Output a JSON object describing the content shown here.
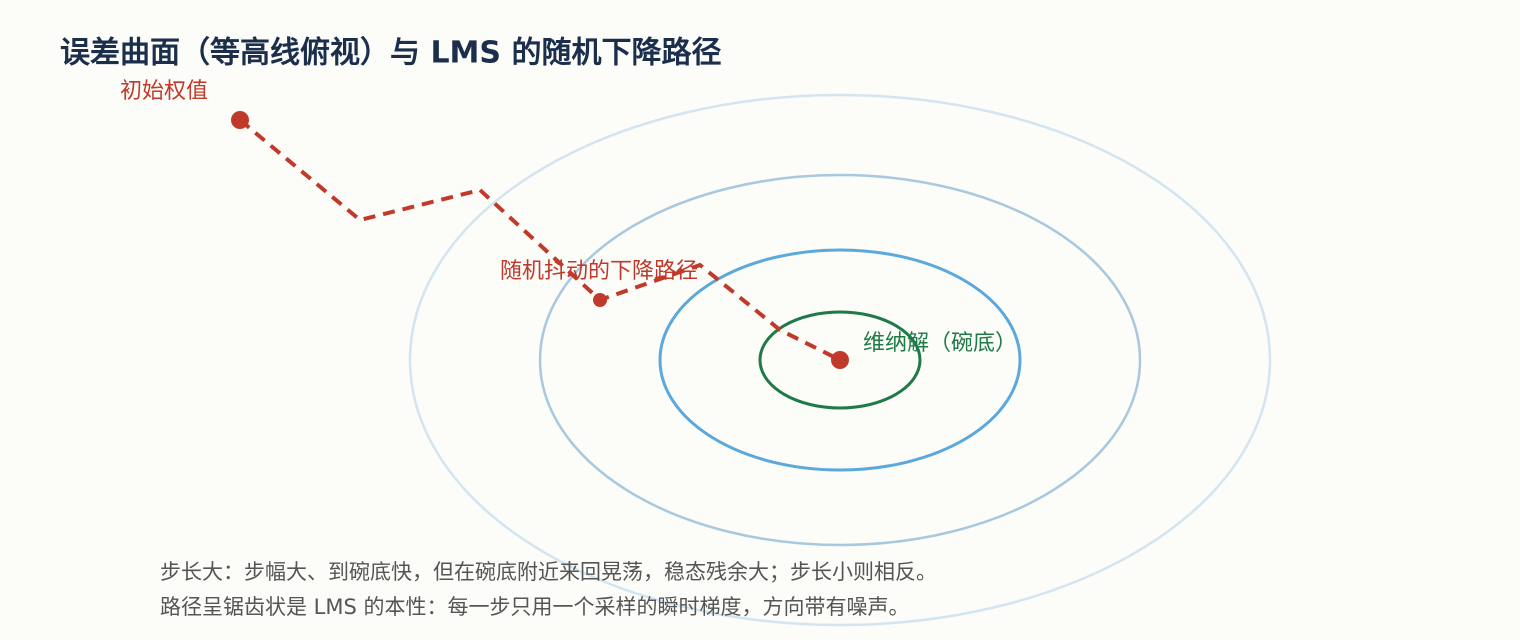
{
  "header": {
    "title": "误差曲面（等高线俯视）与 LMS 的随机下降路径"
  },
  "labels": {
    "start": "初始权值",
    "path": "随机抖动的下降路径",
    "optimum": "维纳解（碗底）"
  },
  "notes": [
    "步长大：步幅大、到碗底快，但在碗底附近来回晃荡，稳态残余大；步长小则相反。",
    "路径呈锯齿状是 LMS 的本性：每一步只用一个采样的瞬时梯度，方向带有噪声。"
  ]
}
